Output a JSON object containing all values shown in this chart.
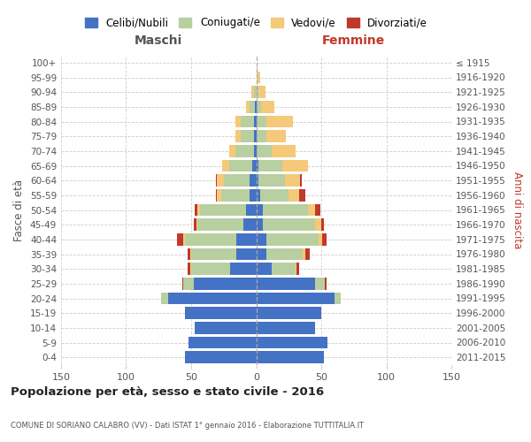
{
  "age_groups": [
    "0-4",
    "5-9",
    "10-14",
    "15-19",
    "20-24",
    "25-29",
    "30-34",
    "35-39",
    "40-44",
    "45-49",
    "50-54",
    "55-59",
    "60-64",
    "65-69",
    "70-74",
    "75-79",
    "80-84",
    "85-89",
    "90-94",
    "95-99",
    "100+"
  ],
  "birth_years": [
    "2011-2015",
    "2006-2010",
    "2001-2005",
    "1996-2000",
    "1991-1995",
    "1986-1990",
    "1981-1985",
    "1976-1980",
    "1971-1975",
    "1966-1970",
    "1961-1965",
    "1956-1960",
    "1951-1955",
    "1946-1950",
    "1941-1945",
    "1936-1940",
    "1931-1935",
    "1926-1930",
    "1921-1925",
    "1916-1920",
    "≤ 1915"
  ],
  "maschi": {
    "celibe": [
      55,
      52,
      47,
      55,
      68,
      48,
      20,
      15,
      15,
      10,
      8,
      5,
      5,
      3,
      2,
      2,
      2,
      1,
      0,
      0,
      0
    ],
    "coniugato": [
      0,
      0,
      0,
      0,
      5,
      8,
      30,
      35,
      40,
      35,
      35,
      22,
      20,
      18,
      14,
      10,
      10,
      4,
      2,
      0,
      0
    ],
    "vedovo": [
      0,
      0,
      0,
      0,
      0,
      0,
      1,
      1,
      1,
      1,
      2,
      3,
      5,
      5,
      5,
      4,
      4,
      3,
      2,
      0,
      0
    ],
    "divorziato": [
      0,
      0,
      0,
      0,
      0,
      1,
      2,
      2,
      5,
      2,
      2,
      1,
      1,
      0,
      0,
      0,
      0,
      0,
      0,
      0,
      0
    ]
  },
  "femmine": {
    "celibe": [
      52,
      55,
      45,
      50,
      60,
      45,
      12,
      8,
      8,
      5,
      5,
      3,
      2,
      2,
      0,
      0,
      0,
      0,
      0,
      0,
      0
    ],
    "coniugata": [
      0,
      0,
      0,
      0,
      5,
      8,
      18,
      28,
      40,
      40,
      35,
      22,
      20,
      18,
      12,
      8,
      8,
      4,
      2,
      1,
      0
    ],
    "vedova": [
      0,
      0,
      0,
      0,
      0,
      0,
      1,
      2,
      3,
      5,
      5,
      8,
      12,
      20,
      18,
      15,
      20,
      10,
      5,
      2,
      0
    ],
    "divorziata": [
      0,
      0,
      0,
      0,
      0,
      1,
      2,
      3,
      3,
      2,
      4,
      5,
      1,
      0,
      0,
      0,
      0,
      0,
      0,
      0,
      0
    ]
  },
  "colors": {
    "celibe": "#4472c4",
    "coniugato": "#b8cfa0",
    "vedovo": "#f5c97a",
    "divorziato": "#c0392b"
  },
  "title": "Popolazione per età, sesso e stato civile - 2016",
  "subtitle": "COMUNE DI SORIANO CALABRO (VV) - Dati ISTAT 1° gennaio 2016 - Elaborazione TUTTITALIA.IT",
  "xlabel_left": "Maschi",
  "xlabel_right": "Femmine",
  "ylabel_left": "Fasce di età",
  "ylabel_right": "Anni di nascita",
  "xlim": 150,
  "legend_labels": [
    "Celibi/Nubili",
    "Coniugati/e",
    "Vedovi/e",
    "Divorziati/e"
  ]
}
